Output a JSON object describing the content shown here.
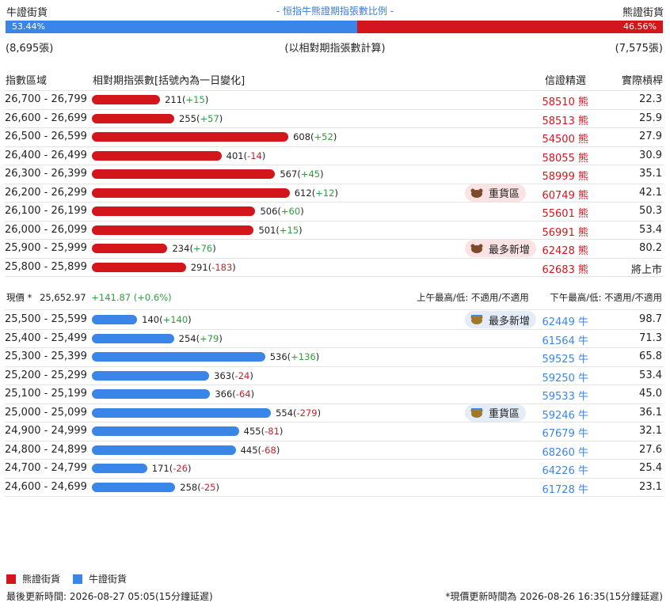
{
  "header": {
    "left_label": "牛證街貨",
    "center_title": "- 恒指牛熊證期指張數比例 -",
    "right_label": "熊證街貨",
    "bull_pct": "53.44%",
    "bear_pct": "46.56%",
    "bull_fraction": 0.5344,
    "bull_count": "(8,695張)",
    "bear_count": "(7,575張)",
    "basis_note": "(以相對期指張數計算)"
  },
  "columns": {
    "range": "指數區域",
    "contracts": "相對期指張數[括號內為一日變化]",
    "selected": "信證精選",
    "leverage": "實際槓桿"
  },
  "colors": {
    "bear": "#d3151c",
    "bull": "#3a86e8",
    "pos": "#2e9d3e",
    "neg": "#c0242b"
  },
  "chart_data": {
    "type": "bar",
    "max_value": 620,
    "bear_rows": [
      {
        "range": "26,700 - 26,799",
        "value": 211,
        "value_label": "211",
        "change": "+15",
        "warrant": "58510",
        "warrant_type": "熊",
        "leverage": "22.3"
      },
      {
        "range": "26,600 - 26,699",
        "value": 255,
        "value_label": "255",
        "change": "+57",
        "warrant": "58513",
        "warrant_type": "熊",
        "leverage": "25.9"
      },
      {
        "range": "26,500 - 26,599",
        "value": 608,
        "value_label": "608",
        "change": "+52",
        "warrant": "54500",
        "warrant_type": "熊",
        "leverage": "27.9"
      },
      {
        "range": "26,400 - 26,499",
        "value": 401,
        "value_label": "401",
        "change": "-14",
        "warrant": "58055",
        "warrant_type": "熊",
        "leverage": "30.9"
      },
      {
        "range": "26,300 - 26,399",
        "value": 567,
        "value_label": "567",
        "change": "+45",
        "warrant": "58999",
        "warrant_type": "熊",
        "leverage": "35.1"
      },
      {
        "range": "26,200 - 26,299",
        "value": 612,
        "value_label": "612",
        "change": "+12",
        "warrant": "60749",
        "warrant_type": "熊",
        "leverage": "42.1",
        "tag": "重貨區"
      },
      {
        "range": "26,100 - 26,199",
        "value": 506,
        "value_label": "506",
        "change": "+60",
        "warrant": "55601",
        "warrant_type": "熊",
        "leverage": "50.3"
      },
      {
        "range": "26,000 - 26,099",
        "value": 501,
        "value_label": "501",
        "change": "+15",
        "warrant": "56991",
        "warrant_type": "熊",
        "leverage": "53.4"
      },
      {
        "range": "25,900 - 25,999",
        "value": 234,
        "value_label": "234",
        "change": "+76",
        "warrant": "62428",
        "warrant_type": "熊",
        "leverage": "80.2",
        "tag": "最多新增"
      },
      {
        "range": "25,800 - 25,899",
        "value": 291,
        "value_label": "291",
        "change": "-183",
        "warrant": "62683",
        "warrant_type": "熊",
        "leverage": "將上市"
      }
    ],
    "bull_rows": [
      {
        "range": "25,500 - 25,599",
        "value": 140,
        "value_label": "140",
        "change": "+140",
        "warrant": "62449",
        "warrant_type": "牛",
        "leverage": "98.7",
        "tag": "最多新增"
      },
      {
        "range": "25,400 - 25,499",
        "value": 254,
        "value_label": "254",
        "change": "+79",
        "warrant": "61564",
        "warrant_type": "牛",
        "leverage": "71.3"
      },
      {
        "range": "25,300 - 25,399",
        "value": 536,
        "value_label": "536",
        "change": "+136",
        "warrant": "59525",
        "warrant_type": "牛",
        "leverage": "65.8"
      },
      {
        "range": "25,200 - 25,299",
        "value": 363,
        "value_label": "363",
        "change": "-24",
        "warrant": "59250",
        "warrant_type": "牛",
        "leverage": "53.4"
      },
      {
        "range": "25,100 - 25,199",
        "value": 366,
        "value_label": "366",
        "change": "-64",
        "warrant": "59533",
        "warrant_type": "牛",
        "leverage": "45.0"
      },
      {
        "range": "25,000 - 25,099",
        "value": 554,
        "value_label": "554",
        "change": "-279",
        "warrant": "59246",
        "warrant_type": "牛",
        "leverage": "36.1",
        "tag": "重貨區"
      },
      {
        "range": "24,900 - 24,999",
        "value": 455,
        "value_label": "455",
        "change": "-81",
        "warrant": "67679",
        "warrant_type": "牛",
        "leverage": "32.1"
      },
      {
        "range": "24,800 - 24,899",
        "value": 445,
        "value_label": "445",
        "change": "-68",
        "warrant": "68260",
        "warrant_type": "牛",
        "leverage": "27.6"
      },
      {
        "range": "24,700 - 24,799",
        "value": 171,
        "value_label": "171",
        "change": "-26",
        "warrant": "64226",
        "warrant_type": "牛",
        "leverage": "25.4"
      },
      {
        "range": "24,600 - 24,699",
        "value": 258,
        "value_label": "258",
        "change": "-25",
        "warrant": "61728",
        "warrant_type": "牛",
        "leverage": "23.1"
      }
    ]
  },
  "price": {
    "label": "現價 *",
    "value": "25,652.97",
    "change": "+141.87 (+0.6%)",
    "am_range": "上午最高/低: 不適用/不適用",
    "pm_range": "下午最高/低: 不適用/不適用"
  },
  "legend": {
    "bear": "熊證街貨",
    "bull": "牛證街貨"
  },
  "footer": {
    "updated": "最後更新時間: 2026-08-27 05:05(15分鐘延遲)",
    "price_updated": "*現價更新時間為 2026-08-26 16:35(15分鐘延遲)"
  }
}
